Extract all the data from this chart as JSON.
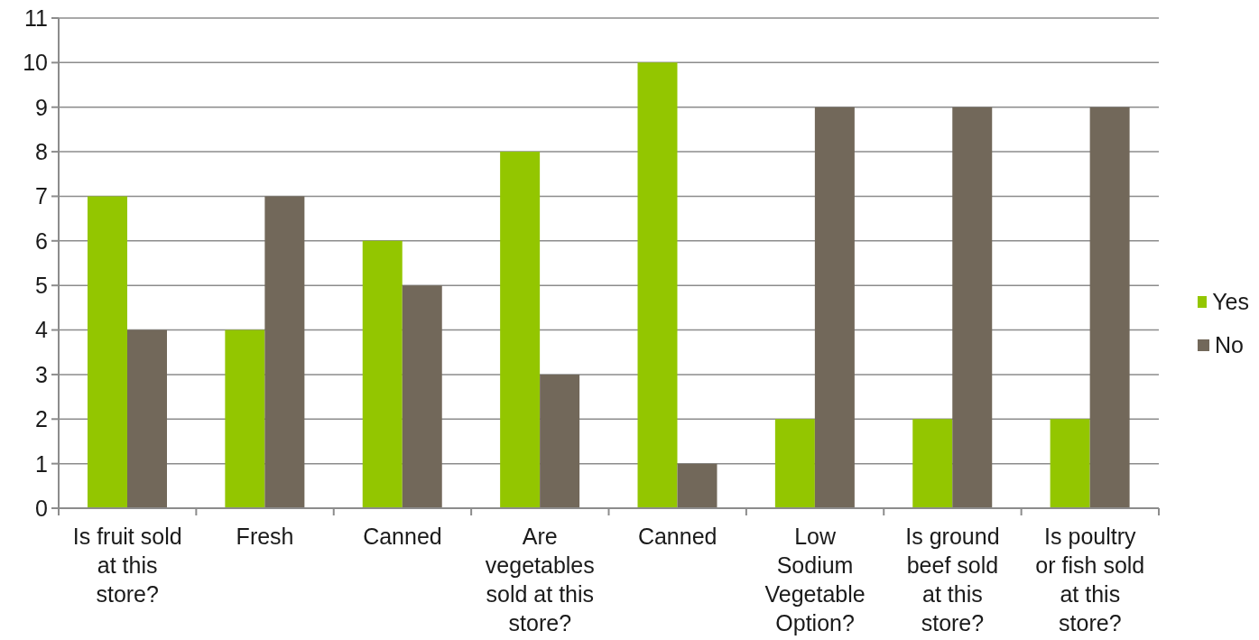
{
  "chart_data": {
    "type": "bar",
    "categories": [
      "Is fruit sold at this store?",
      "Fresh",
      "Canned",
      "Are vegetables sold at this store?",
      "Canned",
      "Low Sodium Vegetable Option?",
      "Is ground beef sold at this store?",
      "Is poultry or fish sold at this store?"
    ],
    "series": [
      {
        "name": "Yes",
        "color": "#93c600",
        "values": [
          7,
          4,
          6,
          8,
          10,
          2,
          2,
          2
        ]
      },
      {
        "name": "No",
        "color": "#72685a",
        "values": [
          4,
          7,
          5,
          3,
          1,
          9,
          9,
          9
        ]
      }
    ],
    "ylim": [
      0,
      11
    ],
    "yticks": [
      0,
      1,
      2,
      3,
      4,
      5,
      6,
      7,
      8,
      9,
      10,
      11
    ],
    "grid": "y",
    "legend": "right"
  }
}
